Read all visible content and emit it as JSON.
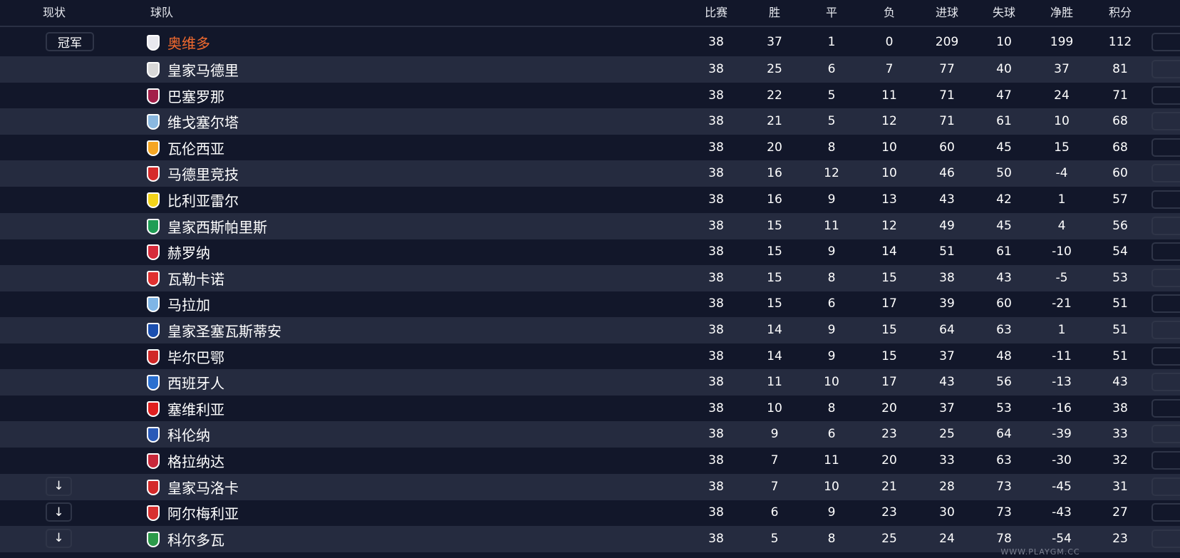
{
  "header": {
    "status": "现状",
    "team": "球队",
    "played": "比赛",
    "won": "胜",
    "drawn": "平",
    "lost": "负",
    "gf": "进球",
    "ga": "失球",
    "gd": "净胜",
    "pts": "积分"
  },
  "colors": {
    "background": "#12172a",
    "row_alt": "#252b3f",
    "champion_text": "#f26a2e"
  },
  "rows": [
    {
      "status": "冠军",
      "team": "奥维多",
      "p": "38",
      "w": "37",
      "d": "1",
      "l": "0",
      "gf": "209",
      "ga": "10",
      "gd": "199",
      "pts": "112",
      "crest": "#e8e8ee"
    },
    {
      "status": "",
      "team": "皇家马德里",
      "p": "38",
      "w": "25",
      "d": "6",
      "l": "7",
      "gf": "77",
      "ga": "40",
      "gd": "37",
      "pts": "81",
      "crest": "#d8d8d8"
    },
    {
      "status": "",
      "team": "巴塞罗那",
      "p": "38",
      "w": "22",
      "d": "5",
      "l": "11",
      "gf": "71",
      "ga": "47",
      "gd": "24",
      "pts": "71",
      "crest": "#a3204a"
    },
    {
      "status": "",
      "team": "维戈塞尔塔",
      "p": "38",
      "w": "21",
      "d": "5",
      "l": "12",
      "gf": "71",
      "ga": "61",
      "gd": "10",
      "pts": "68",
      "crest": "#8ab8e0"
    },
    {
      "status": "",
      "team": "瓦伦西亚",
      "p": "38",
      "w": "20",
      "d": "8",
      "l": "10",
      "gf": "60",
      "ga": "45",
      "gd": "15",
      "pts": "68",
      "crest": "#f5a623"
    },
    {
      "status": "",
      "team": "马德里竞技",
      "p": "38",
      "w": "16",
      "d": "12",
      "l": "10",
      "gf": "46",
      "ga": "50",
      "gd": "-4",
      "pts": "60",
      "crest": "#d62b2b"
    },
    {
      "status": "",
      "team": "比利亚雷尔",
      "p": "38",
      "w": "16",
      "d": "9",
      "l": "13",
      "gf": "43",
      "ga": "42",
      "gd": "1",
      "pts": "57",
      "crest": "#f2d31b"
    },
    {
      "status": "",
      "team": "皇家西斯帕里斯",
      "p": "38",
      "w": "15",
      "d": "11",
      "l": "12",
      "gf": "49",
      "ga": "45",
      "gd": "4",
      "pts": "56",
      "crest": "#1f9d55"
    },
    {
      "status": "",
      "team": "赫罗纳",
      "p": "38",
      "w": "15",
      "d": "9",
      "l": "14",
      "gf": "51",
      "ga": "61",
      "gd": "-10",
      "pts": "54",
      "crest": "#d62b3b"
    },
    {
      "status": "",
      "team": "瓦勒卡诺",
      "p": "38",
      "w": "15",
      "d": "8",
      "l": "15",
      "gf": "38",
      "ga": "43",
      "gd": "-5",
      "pts": "53",
      "crest": "#e03030"
    },
    {
      "status": "",
      "team": "马拉加",
      "p": "38",
      "w": "15",
      "d": "6",
      "l": "17",
      "gf": "39",
      "ga": "60",
      "gd": "-21",
      "pts": "51",
      "crest": "#7fb5e6"
    },
    {
      "status": "",
      "team": "皇家圣塞瓦斯蒂安",
      "p": "38",
      "w": "14",
      "d": "9",
      "l": "15",
      "gf": "64",
      "ga": "63",
      "gd": "1",
      "pts": "51",
      "crest": "#1b4fb0"
    },
    {
      "status": "",
      "team": "毕尔巴鄂",
      "p": "38",
      "w": "14",
      "d": "9",
      "l": "15",
      "gf": "37",
      "ga": "48",
      "gd": "-11",
      "pts": "51",
      "crest": "#d02828"
    },
    {
      "status": "",
      "team": "西班牙人",
      "p": "38",
      "w": "11",
      "d": "10",
      "l": "17",
      "gf": "43",
      "ga": "56",
      "gd": "-13",
      "pts": "43",
      "crest": "#2a6fd0"
    },
    {
      "status": "",
      "team": "塞维利亚",
      "p": "38",
      "w": "10",
      "d": "8",
      "l": "20",
      "gf": "37",
      "ga": "53",
      "gd": "-16",
      "pts": "38",
      "crest": "#e02020"
    },
    {
      "status": "",
      "team": "科伦纳",
      "p": "38",
      "w": "9",
      "d": "6",
      "l": "23",
      "gf": "25",
      "ga": "64",
      "gd": "-39",
      "pts": "33",
      "crest": "#2a5ab8"
    },
    {
      "status": "",
      "team": "格拉纳达",
      "p": "38",
      "w": "7",
      "d": "11",
      "l": "20",
      "gf": "33",
      "ga": "63",
      "gd": "-30",
      "pts": "32",
      "crest": "#c8283a"
    },
    {
      "status": "↓",
      "team": "皇家马洛卡",
      "p": "38",
      "w": "7",
      "d": "10",
      "l": "21",
      "gf": "28",
      "ga": "73",
      "gd": "-45",
      "pts": "31",
      "crest": "#d42a2a"
    },
    {
      "status": "↓",
      "team": "阿尔梅利亚",
      "p": "38",
      "w": "6",
      "d": "9",
      "l": "23",
      "gf": "30",
      "ga": "73",
      "gd": "-43",
      "pts": "27",
      "crest": "#d83030"
    },
    {
      "status": "↓",
      "team": "科尔多瓦",
      "p": "38",
      "w": "5",
      "d": "8",
      "l": "25",
      "gf": "24",
      "ga": "78",
      "gd": "-54",
      "pts": "23",
      "crest": "#2c9a4a"
    }
  ],
  "watermark": "WWW.PLAYGM.CC"
}
